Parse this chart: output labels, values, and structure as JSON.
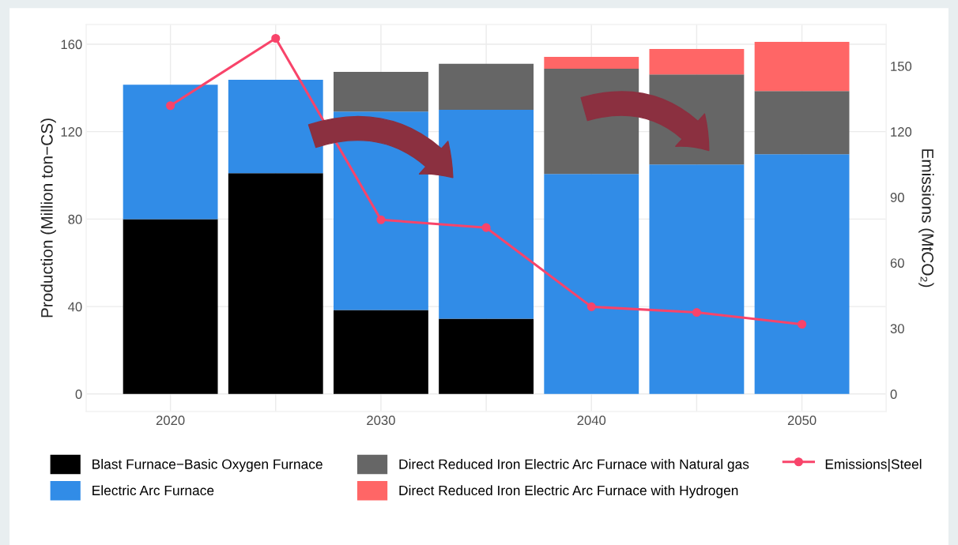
{
  "chart_data": {
    "type": "bar",
    "stacked": true,
    "x": [
      2020,
      2025,
      2030,
      2035,
      2040,
      2045,
      2050
    ],
    "xlim": [
      2016,
      2054
    ],
    "xticks": [
      2020,
      2030,
      2040,
      2050
    ],
    "ylim": [
      -8,
      169
    ],
    "yticks": [
      0,
      40,
      80,
      120,
      160
    ],
    "y2lim": [
      -8,
      169
    ],
    "y2ticks": [
      0,
      30,
      60,
      90,
      120,
      150
    ],
    "ylabel": "Production (Million ton−CS)",
    "y2label": "Emissions (MtCO₂)",
    "grid": true,
    "legend": "bottom",
    "marker": "circle",
    "line_style": "solid",
    "series": [
      {
        "name": "Blast Furnace−Basic Oxygen Furnace",
        "color": "#000000",
        "values": [
          80,
          101,
          38.4,
          34.4,
          null,
          null,
          null
        ]
      },
      {
        "name": "Electric Arc Furnace",
        "color": "#318ce7",
        "values": [
          61.5,
          42.7,
          90.8,
          95.6,
          100.6,
          105,
          109.7
        ]
      },
      {
        "name": "Direct Reduced Iron Electric Arc Furnace with Natural gas",
        "color": "#666666",
        "values": [
          null,
          null,
          18.1,
          21,
          48.2,
          41.2,
          28.9
        ]
      },
      {
        "name": "Direct Reduced Iron Electric Arc Furnace with Hydrogen",
        "color": "#ff6666",
        "values": [
          null,
          null,
          null,
          null,
          5.4,
          11.6,
          22.5
        ]
      },
      {
        "name": "Emissions|Steel",
        "type": "line",
        "color": "#f8446a",
        "values": [
          131.9,
          162.7,
          79.7,
          76.1,
          39.9,
          37.3,
          31.9
        ]
      }
    ]
  }
}
